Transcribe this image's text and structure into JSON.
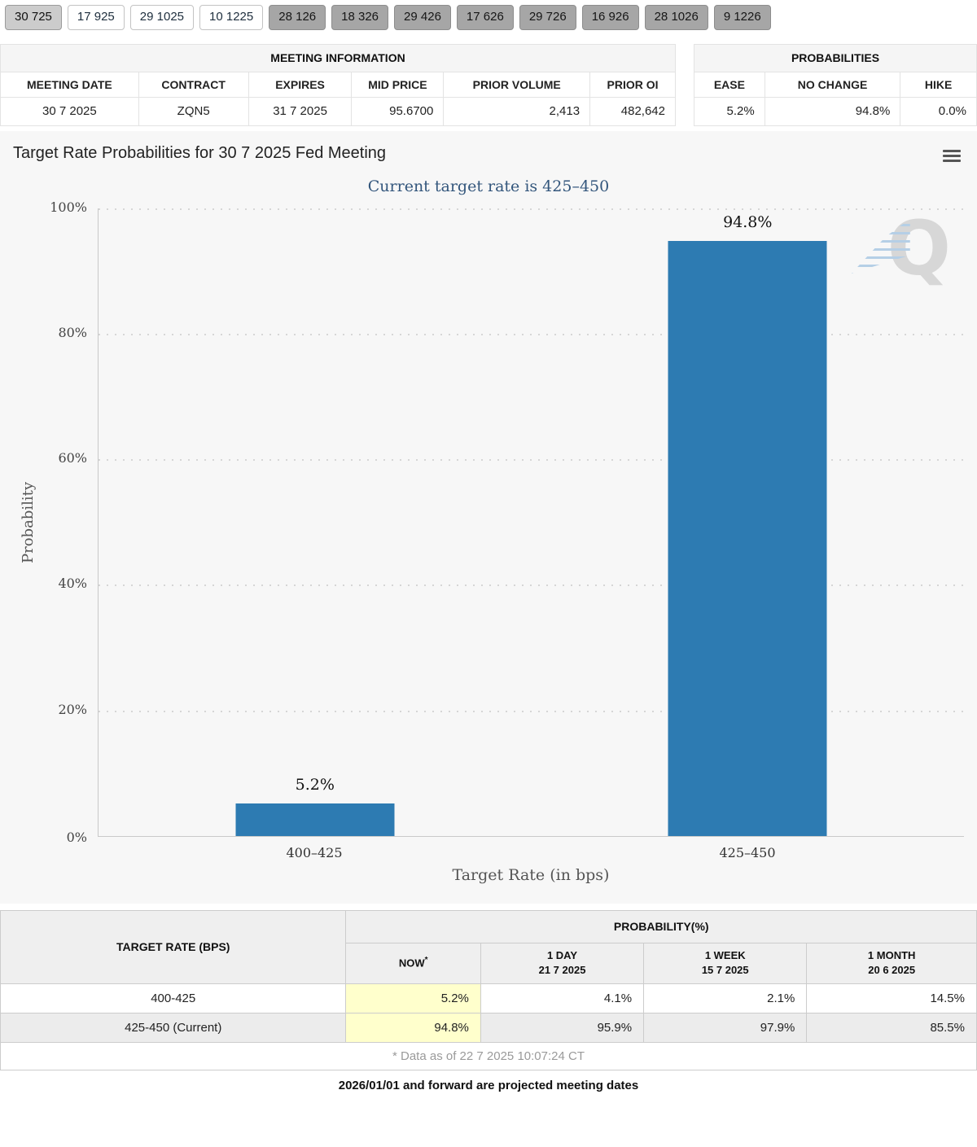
{
  "colors": {
    "bar": "#2d7bb2",
    "subtitle": "#33567c",
    "now_highlight": "#ffffcc"
  },
  "tabs": {
    "items": [
      {
        "label": "30 725"
      },
      {
        "label": "17 925"
      },
      {
        "label": "29 1025"
      },
      {
        "label": "10 1225"
      },
      {
        "label": "28 126"
      },
      {
        "label": "18 326"
      },
      {
        "label": "29 426"
      },
      {
        "label": "17 626"
      },
      {
        "label": "29 726"
      },
      {
        "label": "16 926"
      },
      {
        "label": "28 1026"
      },
      {
        "label": "9 1226"
      }
    ]
  },
  "meeting_info": {
    "title": "MEETING INFORMATION",
    "columns": [
      "MEETING DATE",
      "CONTRACT",
      "EXPIRES",
      "MID PRICE",
      "PRIOR VOLUME",
      "PRIOR OI"
    ],
    "row": [
      "30 7 2025",
      "ZQN5",
      "31 7 2025",
      "95.6700",
      "2,413",
      "482,642"
    ]
  },
  "probabilities": {
    "title": "PROBABILITIES",
    "columns": [
      "EASE",
      "NO CHANGE",
      "HIKE"
    ],
    "row": [
      "5.2%",
      "94.8%",
      "0.0%"
    ]
  },
  "chart_data": {
    "type": "bar",
    "title": "Target Rate Probabilities for 30 7 2025 Fed Meeting",
    "subtitle": "Current target rate is 425–450",
    "categories": [
      "400–425",
      "425–450"
    ],
    "values": [
      5.2,
      94.8
    ],
    "value_labels": [
      "5.2%",
      "94.8%"
    ],
    "xlabel": "Target Rate (in bps)",
    "ylabel": "Probability",
    "ylim": [
      0,
      100
    ],
    "yticks": [
      "100%",
      "80%",
      "60%",
      "40%",
      "20%",
      "0%"
    ],
    "grid": "dotted-horizontal",
    "legend": "none",
    "watermark": "Q"
  },
  "history_table": {
    "left_header": "TARGET RATE (BPS)",
    "group_header": "PROBABILITY(%)",
    "col_headers": {
      "now": {
        "line1": "NOW",
        "sup": "*"
      },
      "day": {
        "line1": "1 DAY",
        "line2": "21 7 2025"
      },
      "week": {
        "line1": "1 WEEK",
        "line2": "15 7 2025"
      },
      "month": {
        "line1": "1 MONTH",
        "line2": "20 6 2025"
      }
    },
    "rows": [
      {
        "rate": "400-425",
        "now": "5.2%",
        "day": "4.1%",
        "week": "2.1%",
        "month": "14.5%"
      },
      {
        "rate": "425-450 (Current)",
        "now": "94.8%",
        "day": "95.9%",
        "week": "97.9%",
        "month": "85.5%"
      }
    ],
    "footnote": "* Data as of 22 7 2025 10:07:24 CT"
  },
  "projection_note": "2026/01/01 and forward are projected meeting dates"
}
